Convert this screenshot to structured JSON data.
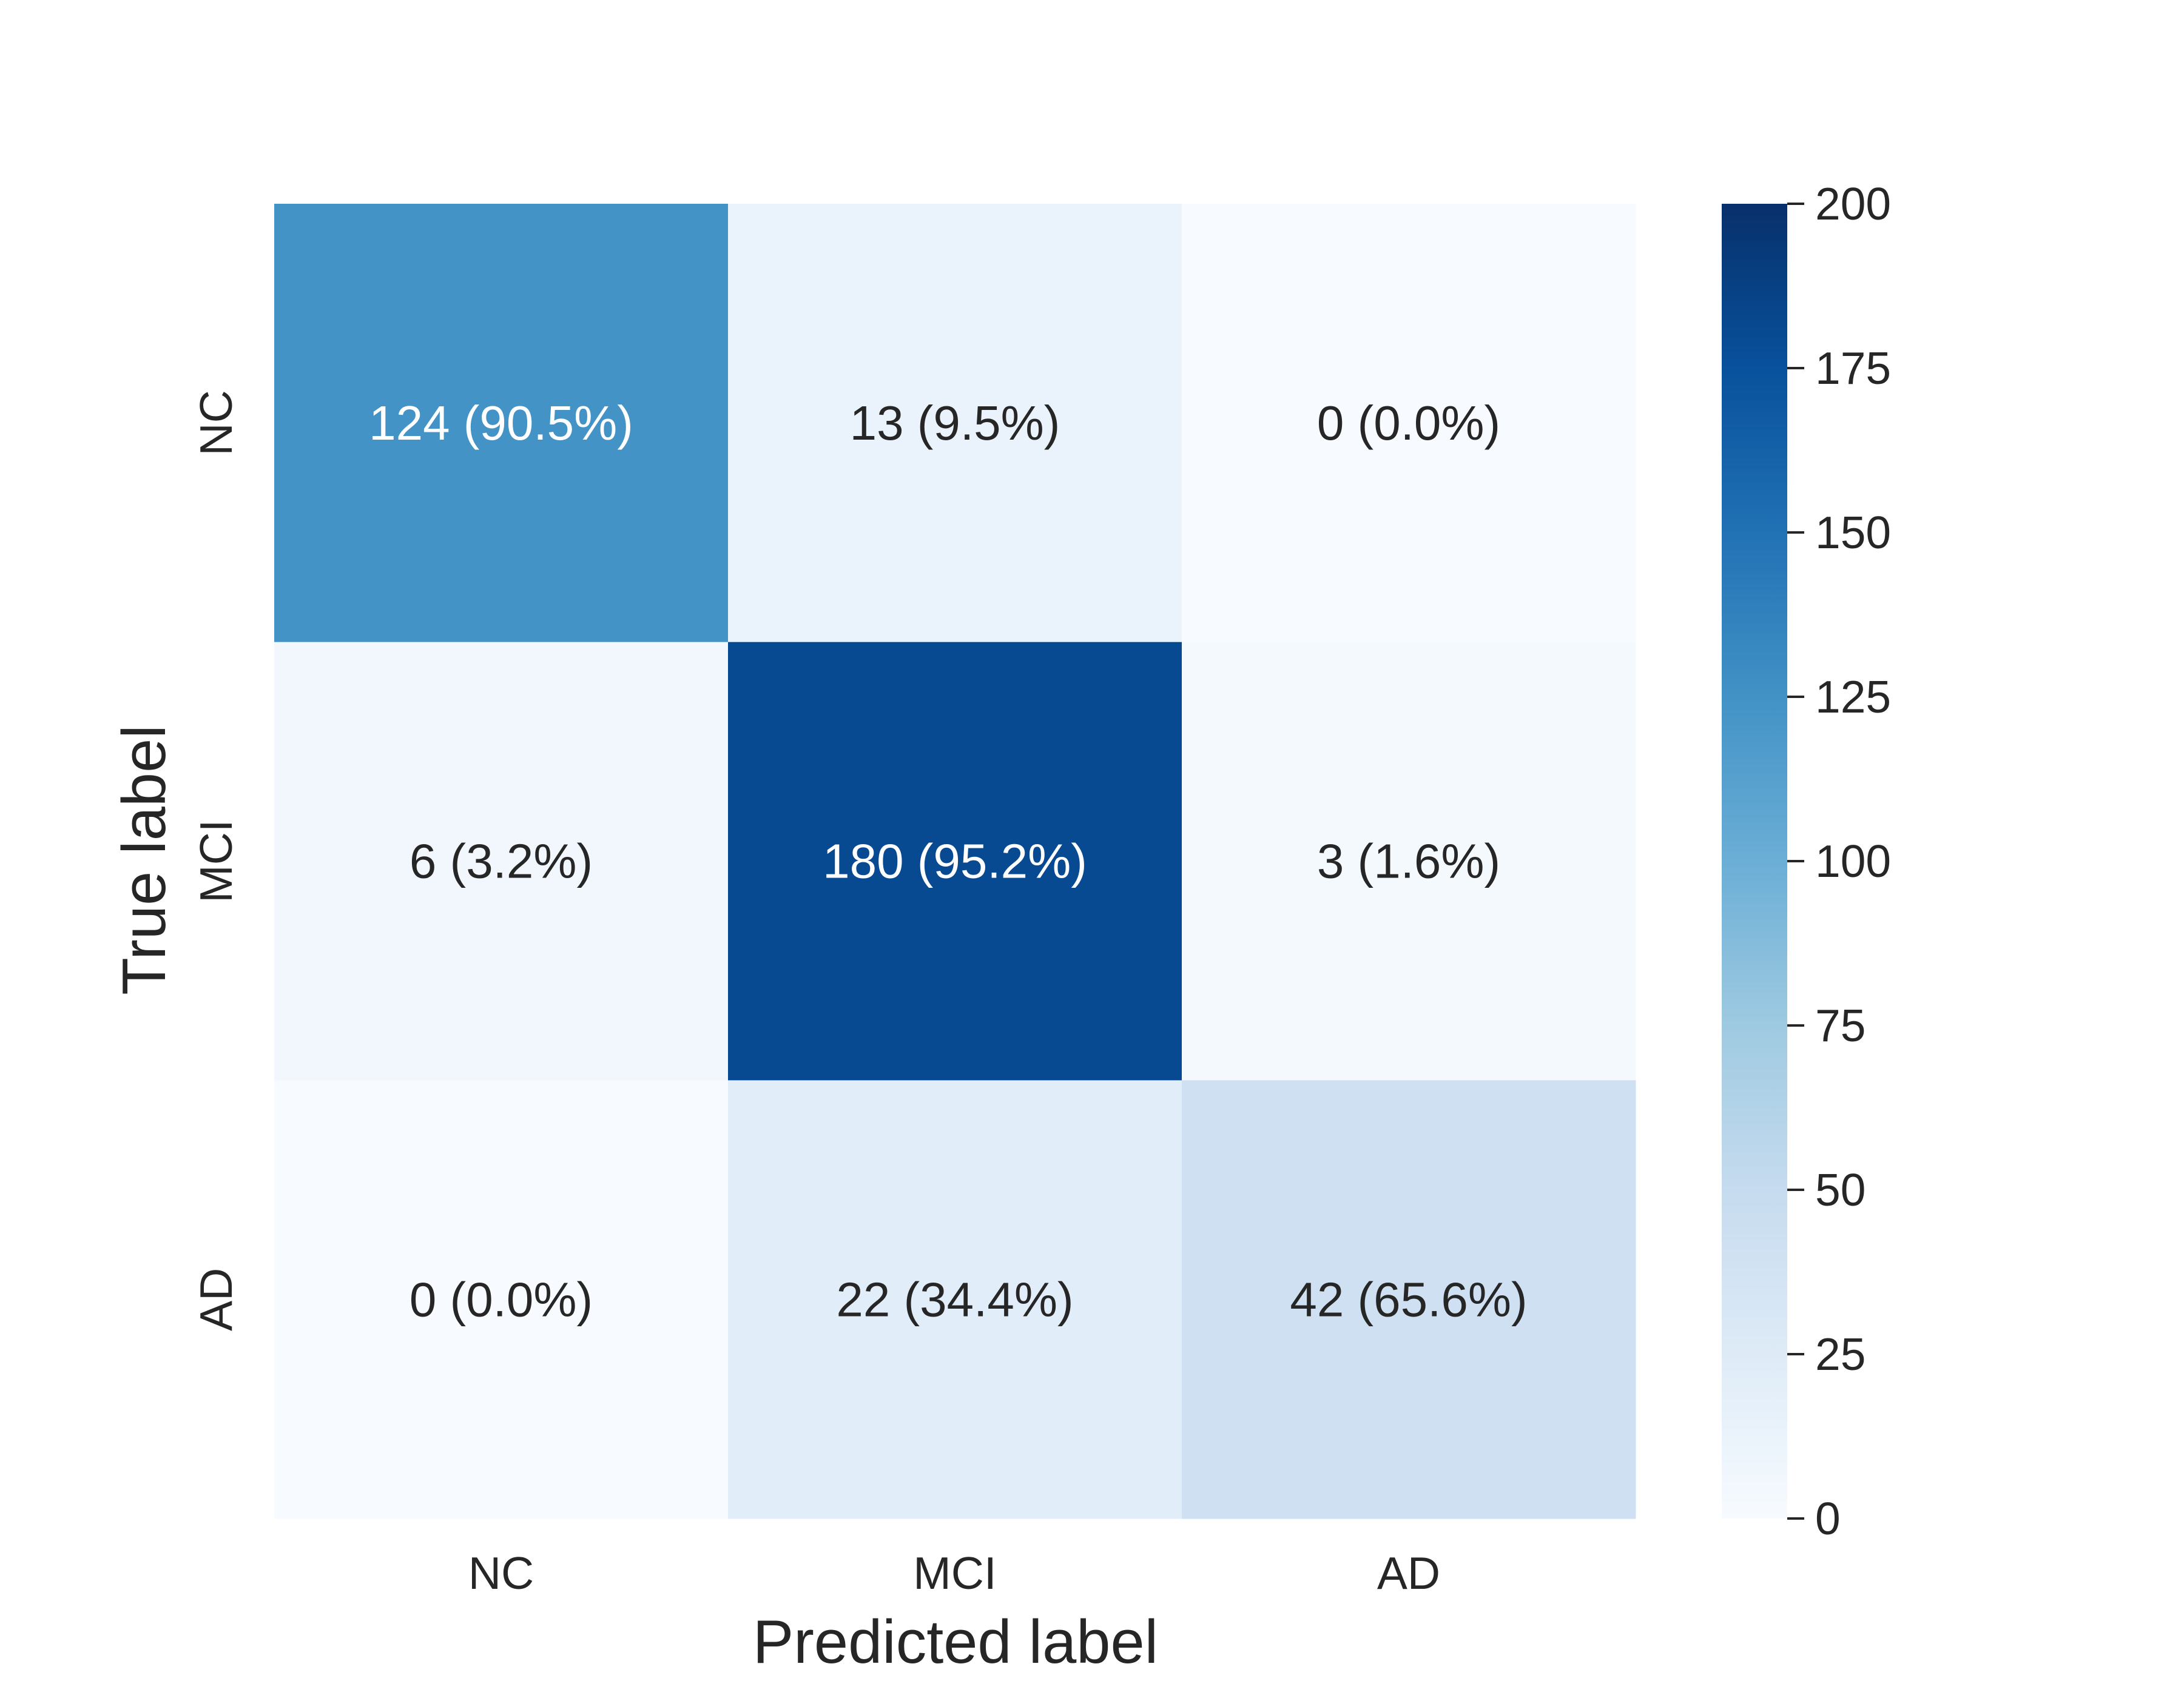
{
  "chart_data": {
    "type": "heatmap",
    "x_categories": [
      "NC",
      "MCI",
      "AD"
    ],
    "y_categories": [
      "NC",
      "MCI",
      "AD"
    ],
    "xlabel": "Predicted label",
    "ylabel": "True label",
    "values": [
      [
        124,
        13,
        0
      ],
      [
        6,
        180,
        3
      ],
      [
        0,
        22,
        42
      ]
    ],
    "annotations": [
      [
        "124 (90.5%)",
        "13 (9.5%)",
        "0 (0.0%)"
      ],
      [
        "6 (3.2%)",
        "180 (95.2%)",
        "3 (1.6%)"
      ],
      [
        "0 (0.0%)",
        "22 (34.4%)",
        "42 (65.6%)"
      ]
    ],
    "colorbar": {
      "min": 0,
      "max": 200,
      "ticks": [
        0,
        25,
        50,
        75,
        100,
        125,
        150,
        175,
        200
      ],
      "colormap": "Blues",
      "color_stops": [
        "#f7fbff",
        "#deebf7",
        "#c6dbef",
        "#9ecae1",
        "#6baed6",
        "#4292c6",
        "#2171b5",
        "#08519c",
        "#08306b"
      ]
    },
    "grid": false
  }
}
